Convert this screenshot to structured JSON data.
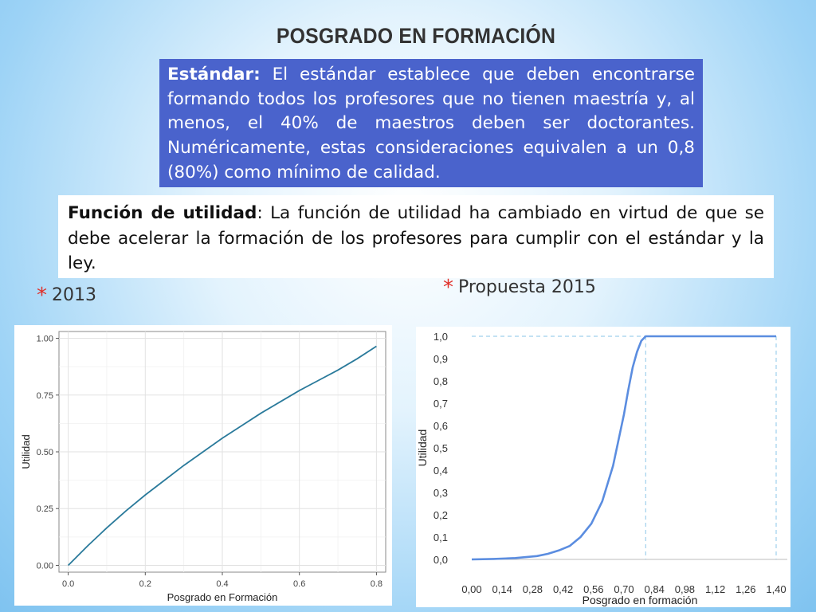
{
  "slide": {
    "title": "POSGRADO EN FORMACIÓN",
    "standard": {
      "label": "Estándar:",
      "text": " El estándar establece que deben encontrarse formando todos los profesores que no tienen maestría y, al menos, el 40% de maestros deben ser doctorantes. Numéricamente, estas consideraciones equivalen a un 0,8 (80%) como mínimo de calidad."
    },
    "utility": {
      "label": "Función de utilidad",
      "text": ": La función de utilidad ha cambiado en virtud de que se debe acelerar la formación de los profesores para cumplir con el estándar y la ley."
    },
    "bullets": [
      {
        "star": "*",
        "label": "2013"
      },
      {
        "star": "*",
        "label": "Propuesta 2015"
      }
    ],
    "colors": {
      "box_blue": "#4a63cc",
      "curve_2013": "#2a7a9b",
      "curve_2015": "#5b8de0",
      "bullet_star": "#e0302a"
    }
  },
  "chart_data": [
    {
      "type": "line",
      "xlabel": "Posgrado en Formación",
      "ylabel": "Utilidad",
      "xlim": [
        0,
        0.8
      ],
      "ylim": [
        0,
        1
      ],
      "x_ticks": [
        0.0,
        0.2,
        0.4,
        0.6,
        0.8
      ],
      "x_tick_labels": [
        "0.0",
        "0.2",
        "0.4",
        "0.6",
        "0.8"
      ],
      "y_ticks": [
        0,
        0.25,
        0.5,
        0.75,
        1.0
      ],
      "y_tick_labels": [
        "0.00",
        "0.25",
        "0.50",
        "0.75",
        "1.00"
      ],
      "grid": true,
      "x": [
        0.0,
        0.05,
        0.1,
        0.15,
        0.2,
        0.25,
        0.3,
        0.35,
        0.4,
        0.45,
        0.5,
        0.55,
        0.6,
        0.65,
        0.7,
        0.75,
        0.8
      ],
      "y": [
        0.0,
        0.085,
        0.165,
        0.24,
        0.31,
        0.375,
        0.44,
        0.5,
        0.56,
        0.615,
        0.67,
        0.72,
        0.77,
        0.815,
        0.86,
        0.91,
        0.965
      ]
    },
    {
      "type": "line",
      "xlabel": "Posgrado en formación",
      "ylabel": "Utilidad",
      "xlim": [
        0,
        1.4
      ],
      "ylim": [
        0,
        1
      ],
      "x_ticks": [
        0,
        0.14,
        0.28,
        0.42,
        0.56,
        0.7,
        0.84,
        0.98,
        1.12,
        1.26,
        1.4
      ],
      "x_tick_labels": [
        "0,00",
        "0,14",
        "0,28",
        "0,42",
        "0,56",
        "0,70",
        "0,84",
        "0,98",
        "1,12",
        "1,26",
        "1,40"
      ],
      "y_ticks": [
        0,
        0.1,
        0.2,
        0.3,
        0.4,
        0.5,
        0.6,
        0.7,
        0.8,
        0.9,
        1.0
      ],
      "y_tick_labels": [
        "0,0",
        "0,1",
        "0,2",
        "0,3",
        "0,4",
        "0,5",
        "0,6",
        "0,7",
        "0,8",
        "0,9",
        "1,0"
      ],
      "grid": false,
      "reference_lines": [
        {
          "orientation": "horizontal",
          "value": 1.0
        },
        {
          "orientation": "vertical",
          "value": 0.8
        },
        {
          "orientation": "vertical",
          "value": 1.4
        }
      ],
      "x": [
        0.0,
        0.1,
        0.2,
        0.3,
        0.35,
        0.4,
        0.45,
        0.5,
        0.55,
        0.6,
        0.65,
        0.7,
        0.72,
        0.74,
        0.76,
        0.78,
        0.8,
        0.9,
        1.0,
        1.1,
        1.2,
        1.3,
        1.4
      ],
      "y": [
        0.0,
        0.002,
        0.006,
        0.015,
        0.025,
        0.04,
        0.06,
        0.1,
        0.16,
        0.26,
        0.42,
        0.65,
        0.76,
        0.86,
        0.93,
        0.98,
        1.0,
        1.0,
        1.0,
        1.0,
        1.0,
        1.0,
        1.0
      ]
    }
  ]
}
